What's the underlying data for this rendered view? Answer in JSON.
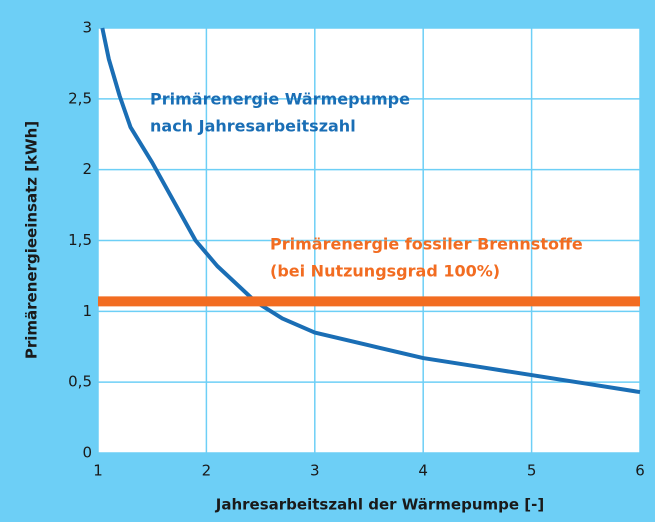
{
  "chart_data": {
    "type": "line",
    "xlabel": "Jahresarbeitszahl der Wärmepumpe [-]",
    "ylabel": "Primärenergieeinsatz [kWh]",
    "annotations": [
      {
        "lines": [
          "Primärenergie Wärmepumpe",
          "nach Jahresarbeitszahl"
        ],
        "color": "#1a6eb5"
      },
      {
        "lines": [
          "Primärenergie fossiler Brennstoffe",
          "(bei Nutzungsgrad 100%)"
        ],
        "color": "#f26c21"
      }
    ],
    "series": [
      {
        "color": "#1a6eb5",
        "width": 4,
        "x": [
          1.04,
          1.1,
          1.2,
          1.3,
          1.5,
          1.9,
          2.1,
          2.45,
          2.7,
          3,
          3.5,
          4,
          4.5,
          5,
          5.5,
          6
        ],
        "values": [
          3,
          2.78,
          2.52,
          2.3,
          2.05,
          1.5,
          1.32,
          1.07,
          0.95,
          0.85,
          0.76,
          0.67,
          0.61,
          0.55,
          0.49,
          0.43
        ]
      },
      {
        "color": "#f26c21",
        "width": 10,
        "x": [
          1,
          6
        ],
        "values": [
          1.07,
          1.07
        ]
      }
    ],
    "xlim": [
      1,
      6
    ],
    "xticks": [
      1,
      2,
      3,
      4,
      5,
      6
    ],
    "ylim": [
      0,
      3
    ],
    "yticks": [
      0,
      {
        "value": 0.5,
        "label": "0,5"
      },
      1,
      {
        "value": 1.5,
        "label": "1,5"
      },
      2,
      {
        "value": 2.5,
        "label": "2,5"
      },
      3
    ],
    "grid": true,
    "grid_color": "#6dcff6",
    "plot_background": "#ffffff"
  }
}
